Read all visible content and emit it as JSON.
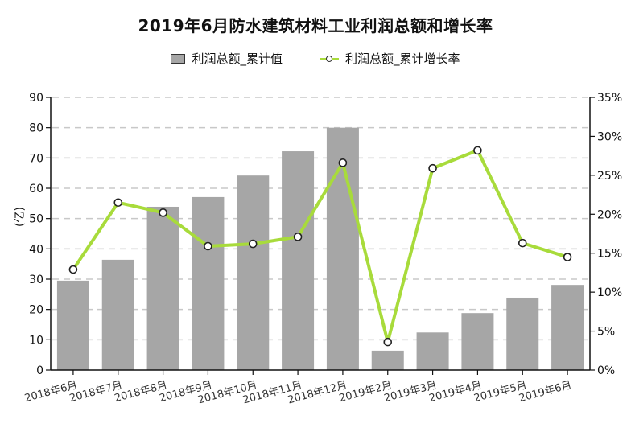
{
  "chart_data": {
    "type": "bar+line",
    "title": "2019年6月防水建筑材料工业利润总额和增长率",
    "xlabel": "",
    "ylabel": "(亿)",
    "y2label": "",
    "categories": [
      "2018年6月",
      "2018年7月",
      "2018年8月",
      "2018年9月",
      "2018年10月",
      "2018年11月",
      "2018年12月",
      "2019年2月",
      "2019年3月",
      "2019年4月",
      "2019年5月",
      "2019年6月"
    ],
    "series": [
      {
        "name": "利润总额_累计值",
        "type": "bar",
        "axis": "left",
        "color": "#a6a6a6",
        "values": [
          29.5,
          36.4,
          53.9,
          57.1,
          64.2,
          72.2,
          80.0,
          6.4,
          12.4,
          18.8,
          23.9,
          28.1
        ]
      },
      {
        "name": "利润总额_累计增长率",
        "type": "line",
        "axis": "right",
        "unit": "%",
        "color": "#a8db3b",
        "values": [
          12.9,
          21.5,
          20.2,
          15.9,
          16.2,
          17.1,
          26.6,
          3.6,
          25.9,
          28.2,
          16.3,
          14.5
        ]
      }
    ],
    "ylim": [
      0,
      90
    ],
    "y2lim": [
      0,
      35
    ],
    "yticks": [
      0,
      10,
      20,
      30,
      40,
      50,
      60,
      70,
      80,
      90
    ],
    "y2ticks": [
      "0%",
      "5%",
      "10%",
      "15%",
      "20%",
      "25%",
      "30%",
      "35%"
    ],
    "grid": true,
    "legend_position": "top"
  },
  "header": {
    "title": "2019年6月防水建筑材料工业利润总额和增长率"
  },
  "legend": {
    "bar_label": "利润总额_累计值",
    "line_label": "利润总额_累计增长率"
  },
  "axis": {
    "ylabel": "(亿)"
  }
}
